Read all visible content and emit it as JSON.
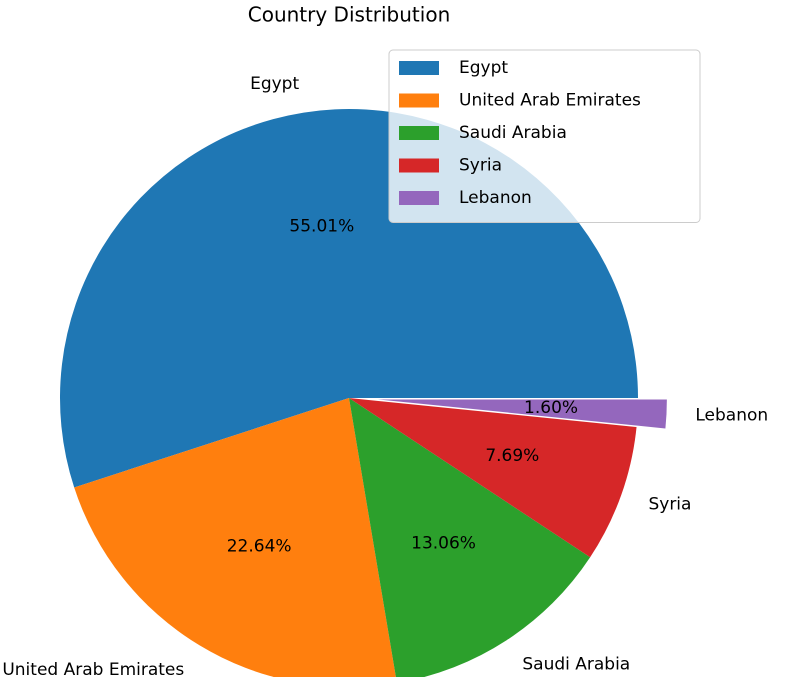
{
  "chart_data": {
    "type": "pie",
    "title": "Country Distribution",
    "categories": [
      "Egypt",
      "United Arab Emirates",
      "Saudi Arabia",
      "Syria",
      "Lebanon"
    ],
    "values": [
      55.01,
      22.64,
      13.06,
      7.69,
      1.6
    ],
    "value_labels": [
      "55.01%",
      "22.64%",
      "13.06%",
      "7.69%",
      "1.60%"
    ],
    "colors": [
      "#1f77b4",
      "#ff7f0e",
      "#2ca02c",
      "#d62728",
      "#9467bd"
    ],
    "explode": [
      0,
      0,
      0,
      0,
      0.1
    ],
    "legend": "upper right"
  }
}
